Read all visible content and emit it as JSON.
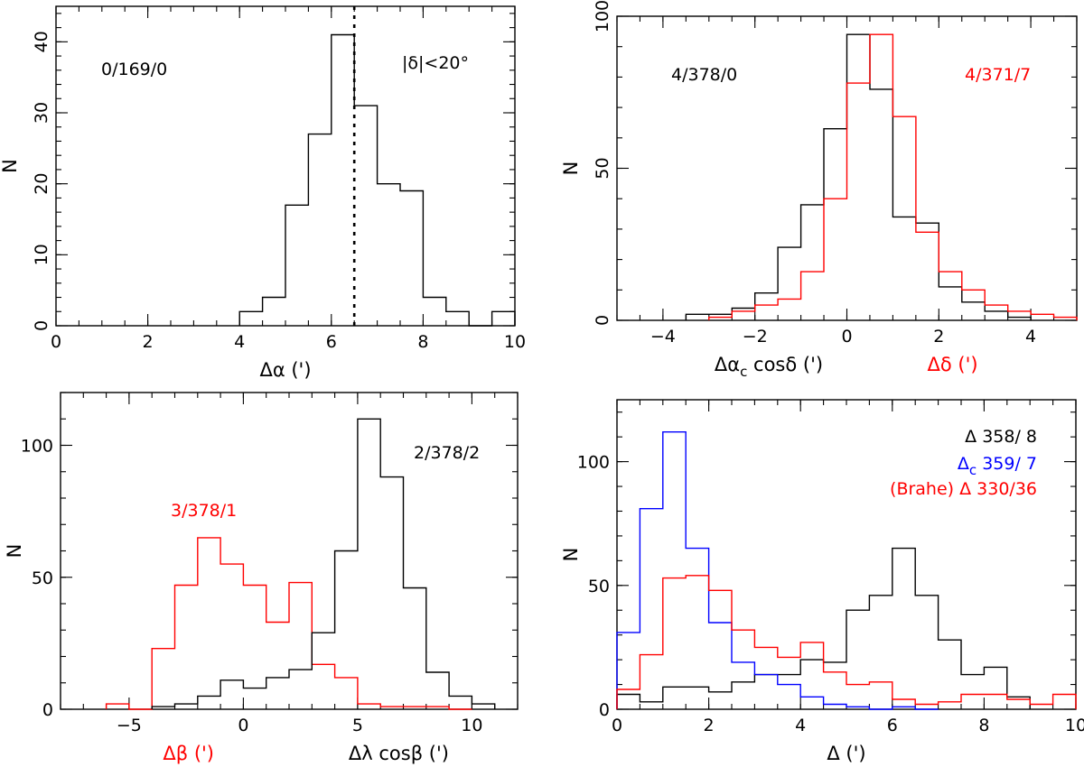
{
  "chart_data": [
    {
      "type": "histogram",
      "id": "p1",
      "xlim": [
        0,
        10
      ],
      "ylim": [
        0,
        45
      ],
      "xticks": [
        0,
        2,
        4,
        6,
        8,
        10
      ],
      "yticks": [
        0,
        10,
        20,
        30,
        40
      ],
      "xminor": 0.5,
      "yminor": 2,
      "ytick_rotate": true,
      "ylabel": "N",
      "xlabels": [
        {
          "text": "Δα (')",
          "color": "#000000",
          "pos": "center"
        }
      ],
      "annotations": [
        {
          "text": "0/169/0",
          "color": "#000000",
          "pos": "top-left"
        },
        {
          "text": "|δ|<20°",
          "color": "#000000",
          "pos": "top-right"
        }
      ],
      "vline": {
        "x": 6.5,
        "style": "dotted",
        "color": "#000000"
      },
      "series": [
        {
          "name": "Δα",
          "color": "#000000",
          "edges": [
            4.0,
            4.5,
            5.0,
            5.5,
            6.0,
            6.5,
            7.0,
            7.5,
            8.0,
            8.5,
            9.0,
            9.5,
            10.0
          ],
          "counts": [
            2,
            4,
            17,
            27,
            41,
            31,
            20,
            19,
            4,
            2,
            0,
            2
          ]
        }
      ]
    },
    {
      "type": "histogram",
      "id": "p2",
      "xlim": [
        -5,
        5
      ],
      "ylim": [
        0,
        100
      ],
      "xticks": [
        -4,
        -2,
        0,
        2,
        4
      ],
      "xtick_labels": [
        "−4",
        "−2",
        "0",
        "2",
        "4"
      ],
      "yticks": [
        0,
        50,
        100
      ],
      "xminor": 0.5,
      "yminor": 10,
      "ytick_rotate": true,
      "ylabel": "N",
      "xlabels": [
        {
          "text": "Δα cosδ (')",
          "sub": "c",
          "color": "#000000",
          "pos": "left"
        },
        {
          "text": "Δδ (')",
          "color": "#ff0000",
          "pos": "right"
        }
      ],
      "annotations": [
        {
          "text": "4/378/0",
          "color": "#000000",
          "pos": "top-left"
        },
        {
          "text": "4/371/7",
          "color": "#ff0000",
          "pos": "top-right"
        }
      ],
      "series": [
        {
          "name": "Δαc cosδ",
          "color": "#000000",
          "edges": [
            -3.5,
            -3.0,
            -2.5,
            -2.0,
            -1.5,
            -1.0,
            -0.5,
            0.0,
            0.5,
            1.0,
            1.5,
            2.0,
            2.5,
            3.0,
            3.5,
            4.0
          ],
          "counts": [
            2,
            2,
            4,
            9,
            24,
            38,
            63,
            94,
            76,
            34,
            32,
            11,
            6,
            3,
            1
          ]
        },
        {
          "name": "Δδ",
          "color": "#ff0000",
          "edges": [
            -3.0,
            -2.5,
            -2.0,
            -1.5,
            -1.0,
            -0.5,
            0.0,
            0.5,
            1.0,
            1.5,
            2.0,
            2.5,
            3.0,
            3.5,
            4.0,
            4.5,
            5.0
          ],
          "counts": [
            1,
            3,
            5,
            7,
            16,
            40,
            78,
            94,
            67,
            29,
            16,
            10,
            5,
            3,
            2,
            1
          ]
        }
      ]
    },
    {
      "type": "histogram",
      "id": "p3",
      "xlim": [
        -8,
        12
      ],
      "ylim": [
        0,
        120
      ],
      "xticks": [
        -5,
        0,
        5,
        10
      ],
      "xtick_labels": [
        "−5",
        "0",
        "5",
        "10"
      ],
      "yticks": [
        0,
        50,
        100
      ],
      "xminor": 1,
      "yminor": 10,
      "ytick_rotate": false,
      "ylabel": "N",
      "xlabels": [
        {
          "text": "Δβ (')",
          "color": "#ff0000",
          "pos": "left"
        },
        {
          "text": "Δλ cosβ (')",
          "color": "#000000",
          "pos": "right"
        }
      ],
      "annotations": [
        {
          "text": "3/378/1",
          "color": "#ff0000",
          "pos": "mid-left"
        },
        {
          "text": "2/378/2",
          "color": "#000000",
          "pos": "top-right"
        }
      ],
      "series": [
        {
          "name": "Δβ",
          "color": "#ff0000",
          "edges": [
            -6,
            -5,
            -4,
            -3,
            -2,
            -1,
            0,
            1,
            2,
            3,
            4,
            5,
            6,
            7,
            8,
            9,
            10
          ],
          "counts": [
            2,
            0,
            23,
            47,
            65,
            55,
            47,
            33,
            48,
            17,
            12,
            2,
            1,
            1,
            1,
            0
          ]
        },
        {
          "name": "Δλ cosβ",
          "color": "#000000",
          "edges": [
            -4,
            -3,
            -2,
            -1,
            0,
            1,
            2,
            3,
            4,
            5,
            6,
            7,
            8,
            9,
            10,
            11
          ],
          "counts": [
            1,
            2,
            5,
            11,
            8,
            12,
            15,
            29,
            60,
            110,
            88,
            46,
            14,
            5,
            2
          ]
        }
      ]
    },
    {
      "type": "histogram",
      "id": "p4",
      "xlim": [
        0,
        10
      ],
      "ylim": [
        0,
        125
      ],
      "xticks": [
        0,
        2,
        4,
        6,
        8,
        10
      ],
      "yticks": [
        0,
        50,
        100
      ],
      "xminor": 0.5,
      "yminor": 10,
      "ytick_rotate": false,
      "ylabel": "N",
      "xlabels": [
        {
          "text": "Δ (')",
          "color": "#000000",
          "pos": "center"
        }
      ],
      "legend_text": [
        {
          "text": "Δ 358/ 8",
          "color": "#000000"
        },
        {
          "text": "Δ",
          "sub": "c",
          "after": " 359/ 7",
          "color": "#0000ff"
        },
        {
          "text": "(Brahe) Δ 330/36",
          "color": "#ff0000"
        }
      ],
      "series": [
        {
          "name": "Δ",
          "color": "#000000",
          "edges": [
            0,
            0.5,
            1.0,
            1.5,
            2.0,
            2.5,
            3.0,
            3.5,
            4.0,
            4.5,
            5.0,
            5.5,
            6.0,
            6.5,
            7.0,
            7.5,
            8.0,
            8.5,
            9.0
          ],
          "counts": [
            6,
            3,
            9,
            9,
            7,
            11,
            14,
            14,
            20,
            19,
            40,
            46,
            65,
            46,
            28,
            14,
            17,
            5
          ]
        },
        {
          "name": "Δc",
          "color": "#0000ff",
          "edges": [
            0,
            0.5,
            1.0,
            1.5,
            2.0,
            2.5,
            3.0,
            3.5,
            4.0,
            4.5,
            5.0,
            5.5,
            6.0,
            6.5,
            7.0
          ],
          "counts": [
            31,
            81,
            112,
            65,
            35,
            19,
            14,
            10,
            5,
            2,
            1,
            0,
            1,
            0
          ]
        },
        {
          "name": "(Brahe) Δ",
          "color": "#ff0000",
          "edges": [
            0,
            0.5,
            1.0,
            1.5,
            2.0,
            2.5,
            3.0,
            3.5,
            4.0,
            4.5,
            5.0,
            5.5,
            6.0,
            6.5,
            7.0,
            7.5,
            8.0,
            8.5,
            9.0,
            9.5,
            10.0
          ],
          "counts": [
            8,
            22,
            53,
            54,
            48,
            32,
            25,
            21,
            27,
            15,
            10,
            11,
            4,
            2,
            3,
            6,
            6,
            4,
            2,
            6
          ]
        }
      ]
    }
  ]
}
